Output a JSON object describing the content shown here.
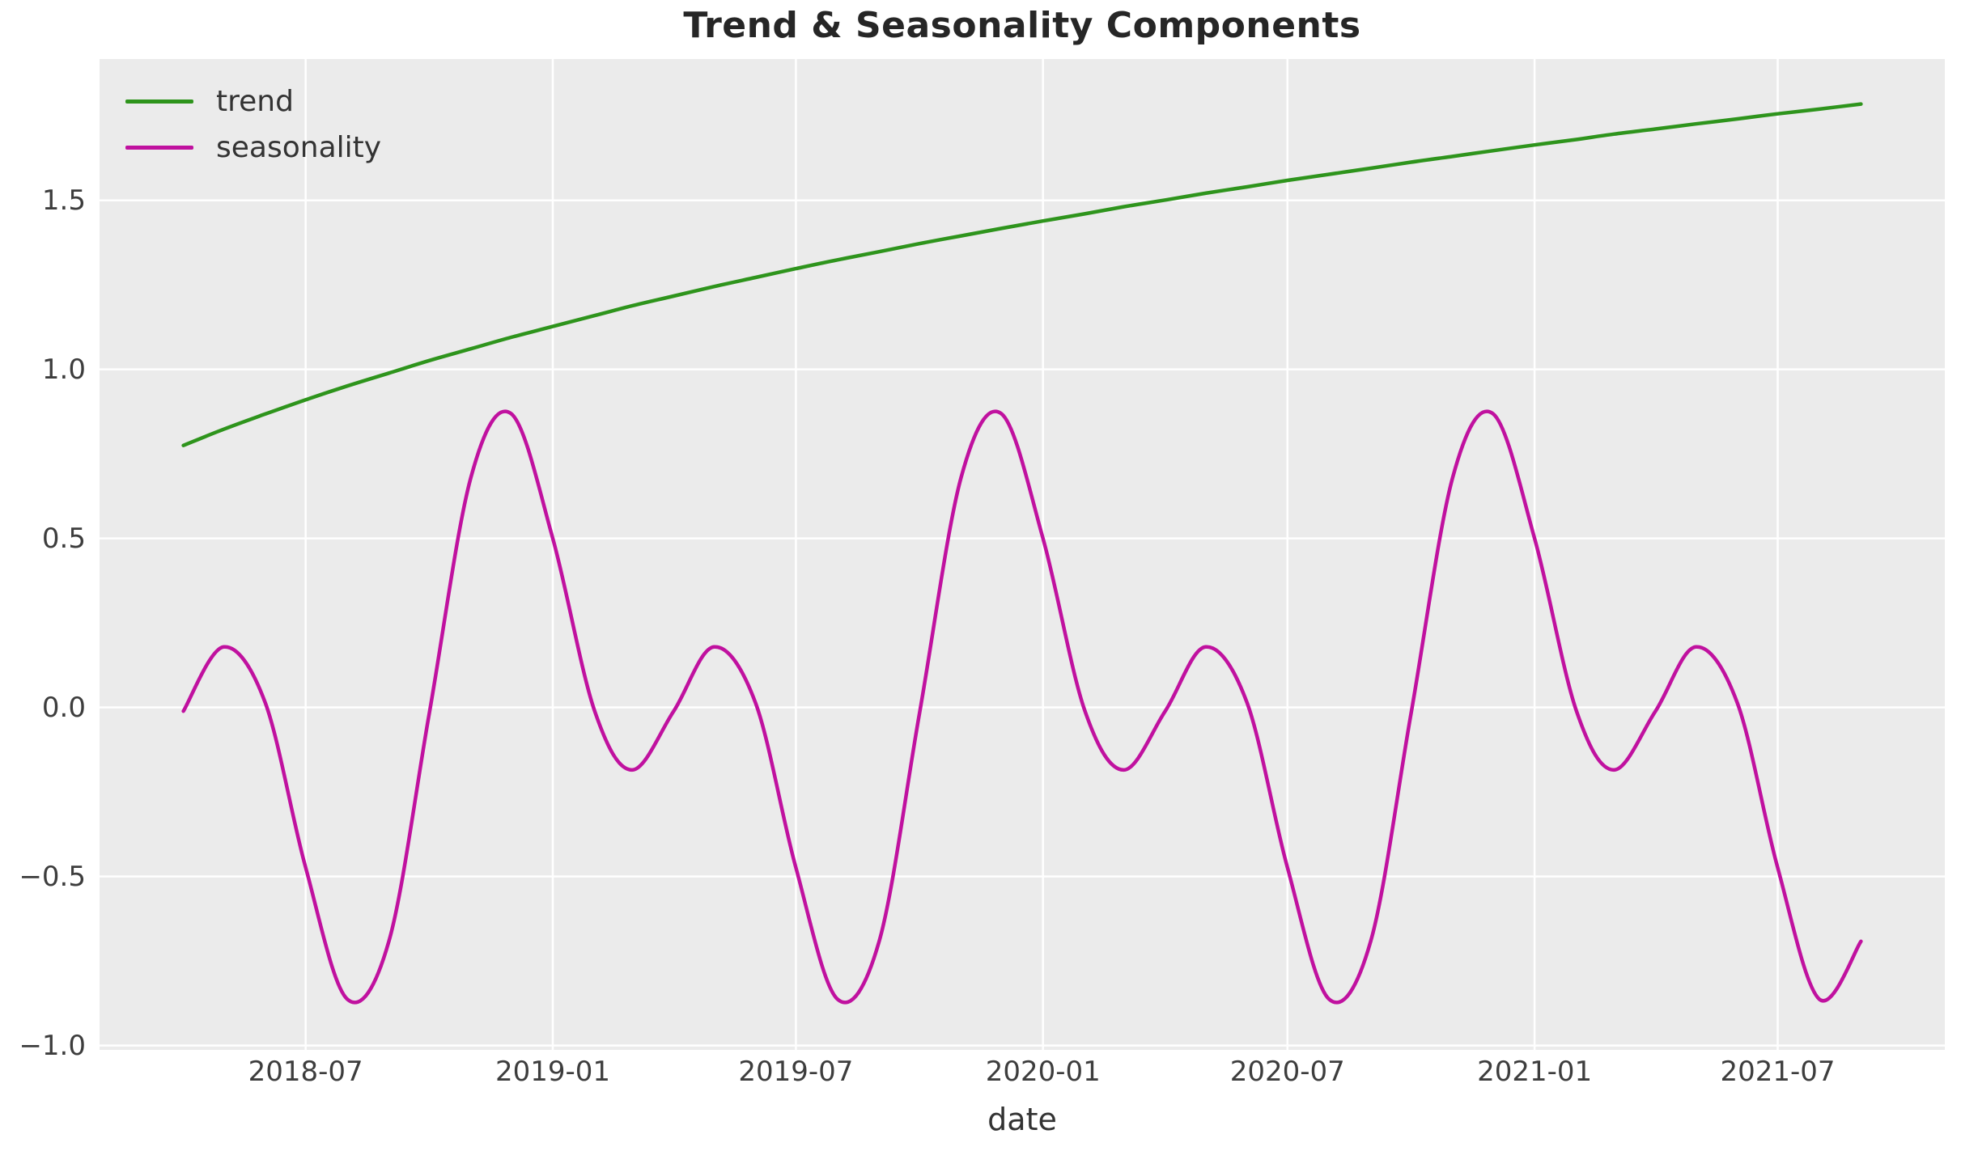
{
  "header": {
    "title": "Trend & Seasonality Components"
  },
  "axes": {
    "xlabel": "date",
    "x_ticks": [
      "2018-07",
      "2019-01",
      "2019-07",
      "2020-01",
      "2020-07",
      "2021-01",
      "2021-07"
    ],
    "x_tick_dates": [
      "2018-07-01",
      "2019-01-01",
      "2019-07-01",
      "2020-01-01",
      "2020-07-01",
      "2021-01-01",
      "2021-07-01"
    ],
    "y_ticks": [
      "1.5",
      "1.0",
      "0.5",
      "0.0",
      "−0.5",
      "−1.0"
    ],
    "y_tick_values": [
      1.5,
      1.0,
      0.5,
      0.0,
      -0.5,
      -1.0
    ]
  },
  "style": {
    "plot_bg": "#ebebeb",
    "grid_color": "#ffffff",
    "figure_bg": "#ffffff",
    "tick_label_color": "#3d3d3d",
    "title_color": "#262626"
  },
  "chart_data": {
    "type": "line",
    "title": "Trend & Seasonality Components",
    "xlabel": "date",
    "ylabel": "",
    "grid": true,
    "legend_position": "upper left",
    "ylim": [
      -1.013,
      1.918
    ],
    "xlim_days": [
      -62.45,
      1311.45
    ],
    "x": [
      "2018-04-01",
      "2018-05-01",
      "2018-06-01",
      "2018-07-01",
      "2018-08-01",
      "2018-09-01",
      "2018-10-01",
      "2018-11-01",
      "2018-12-01",
      "2019-01-01",
      "2019-02-01",
      "2019-03-01",
      "2019-04-01",
      "2019-05-01",
      "2019-06-01",
      "2019-07-01",
      "2019-08-01",
      "2019-09-01",
      "2019-10-01",
      "2019-11-01",
      "2019-12-01",
      "2020-01-01",
      "2020-02-01",
      "2020-03-01",
      "2020-04-01",
      "2020-05-01",
      "2020-06-01",
      "2020-07-01",
      "2020-08-01",
      "2020-09-01",
      "2020-10-01",
      "2020-11-01",
      "2020-12-01",
      "2021-01-01",
      "2021-02-01",
      "2021-03-01",
      "2021-04-01",
      "2021-05-01",
      "2021-06-01",
      "2021-07-01",
      "2021-08-01",
      "2021-09-01"
    ],
    "series": [
      {
        "name": "trend",
        "color": "#2e941c",
        "values": [
          0.775,
          0.823,
          0.868,
          0.91,
          0.951,
          0.989,
          1.026,
          1.061,
          1.095,
          1.127,
          1.159,
          1.188,
          1.217,
          1.245,
          1.272,
          1.298,
          1.324,
          1.348,
          1.372,
          1.395,
          1.417,
          1.439,
          1.46,
          1.481,
          1.501,
          1.521,
          1.54,
          1.559,
          1.577,
          1.595,
          1.613,
          1.63,
          1.647,
          1.664,
          1.68,
          1.696,
          1.711,
          1.726,
          1.741,
          1.756,
          1.77,
          1.785
        ]
      },
      {
        "name": "seasonality",
        "color": "#c0119f",
        "values": [
          -0.011,
          0.179,
          0.013,
          -0.474,
          -0.863,
          -0.692,
          -0.019,
          0.68,
          0.869,
          0.5,
          -0.008,
          -0.185,
          -0.011,
          0.179,
          0.013,
          -0.474,
          -0.863,
          -0.692,
          -0.019,
          0.68,
          0.869,
          0.5,
          -0.008,
          -0.185,
          -0.011,
          0.179,
          0.013,
          -0.474,
          -0.863,
          -0.692,
          -0.019,
          0.68,
          0.869,
          0.5,
          -0.008,
          -0.185,
          -0.011,
          0.179,
          0.013,
          -0.474,
          -0.863,
          -0.692
        ]
      }
    ]
  }
}
